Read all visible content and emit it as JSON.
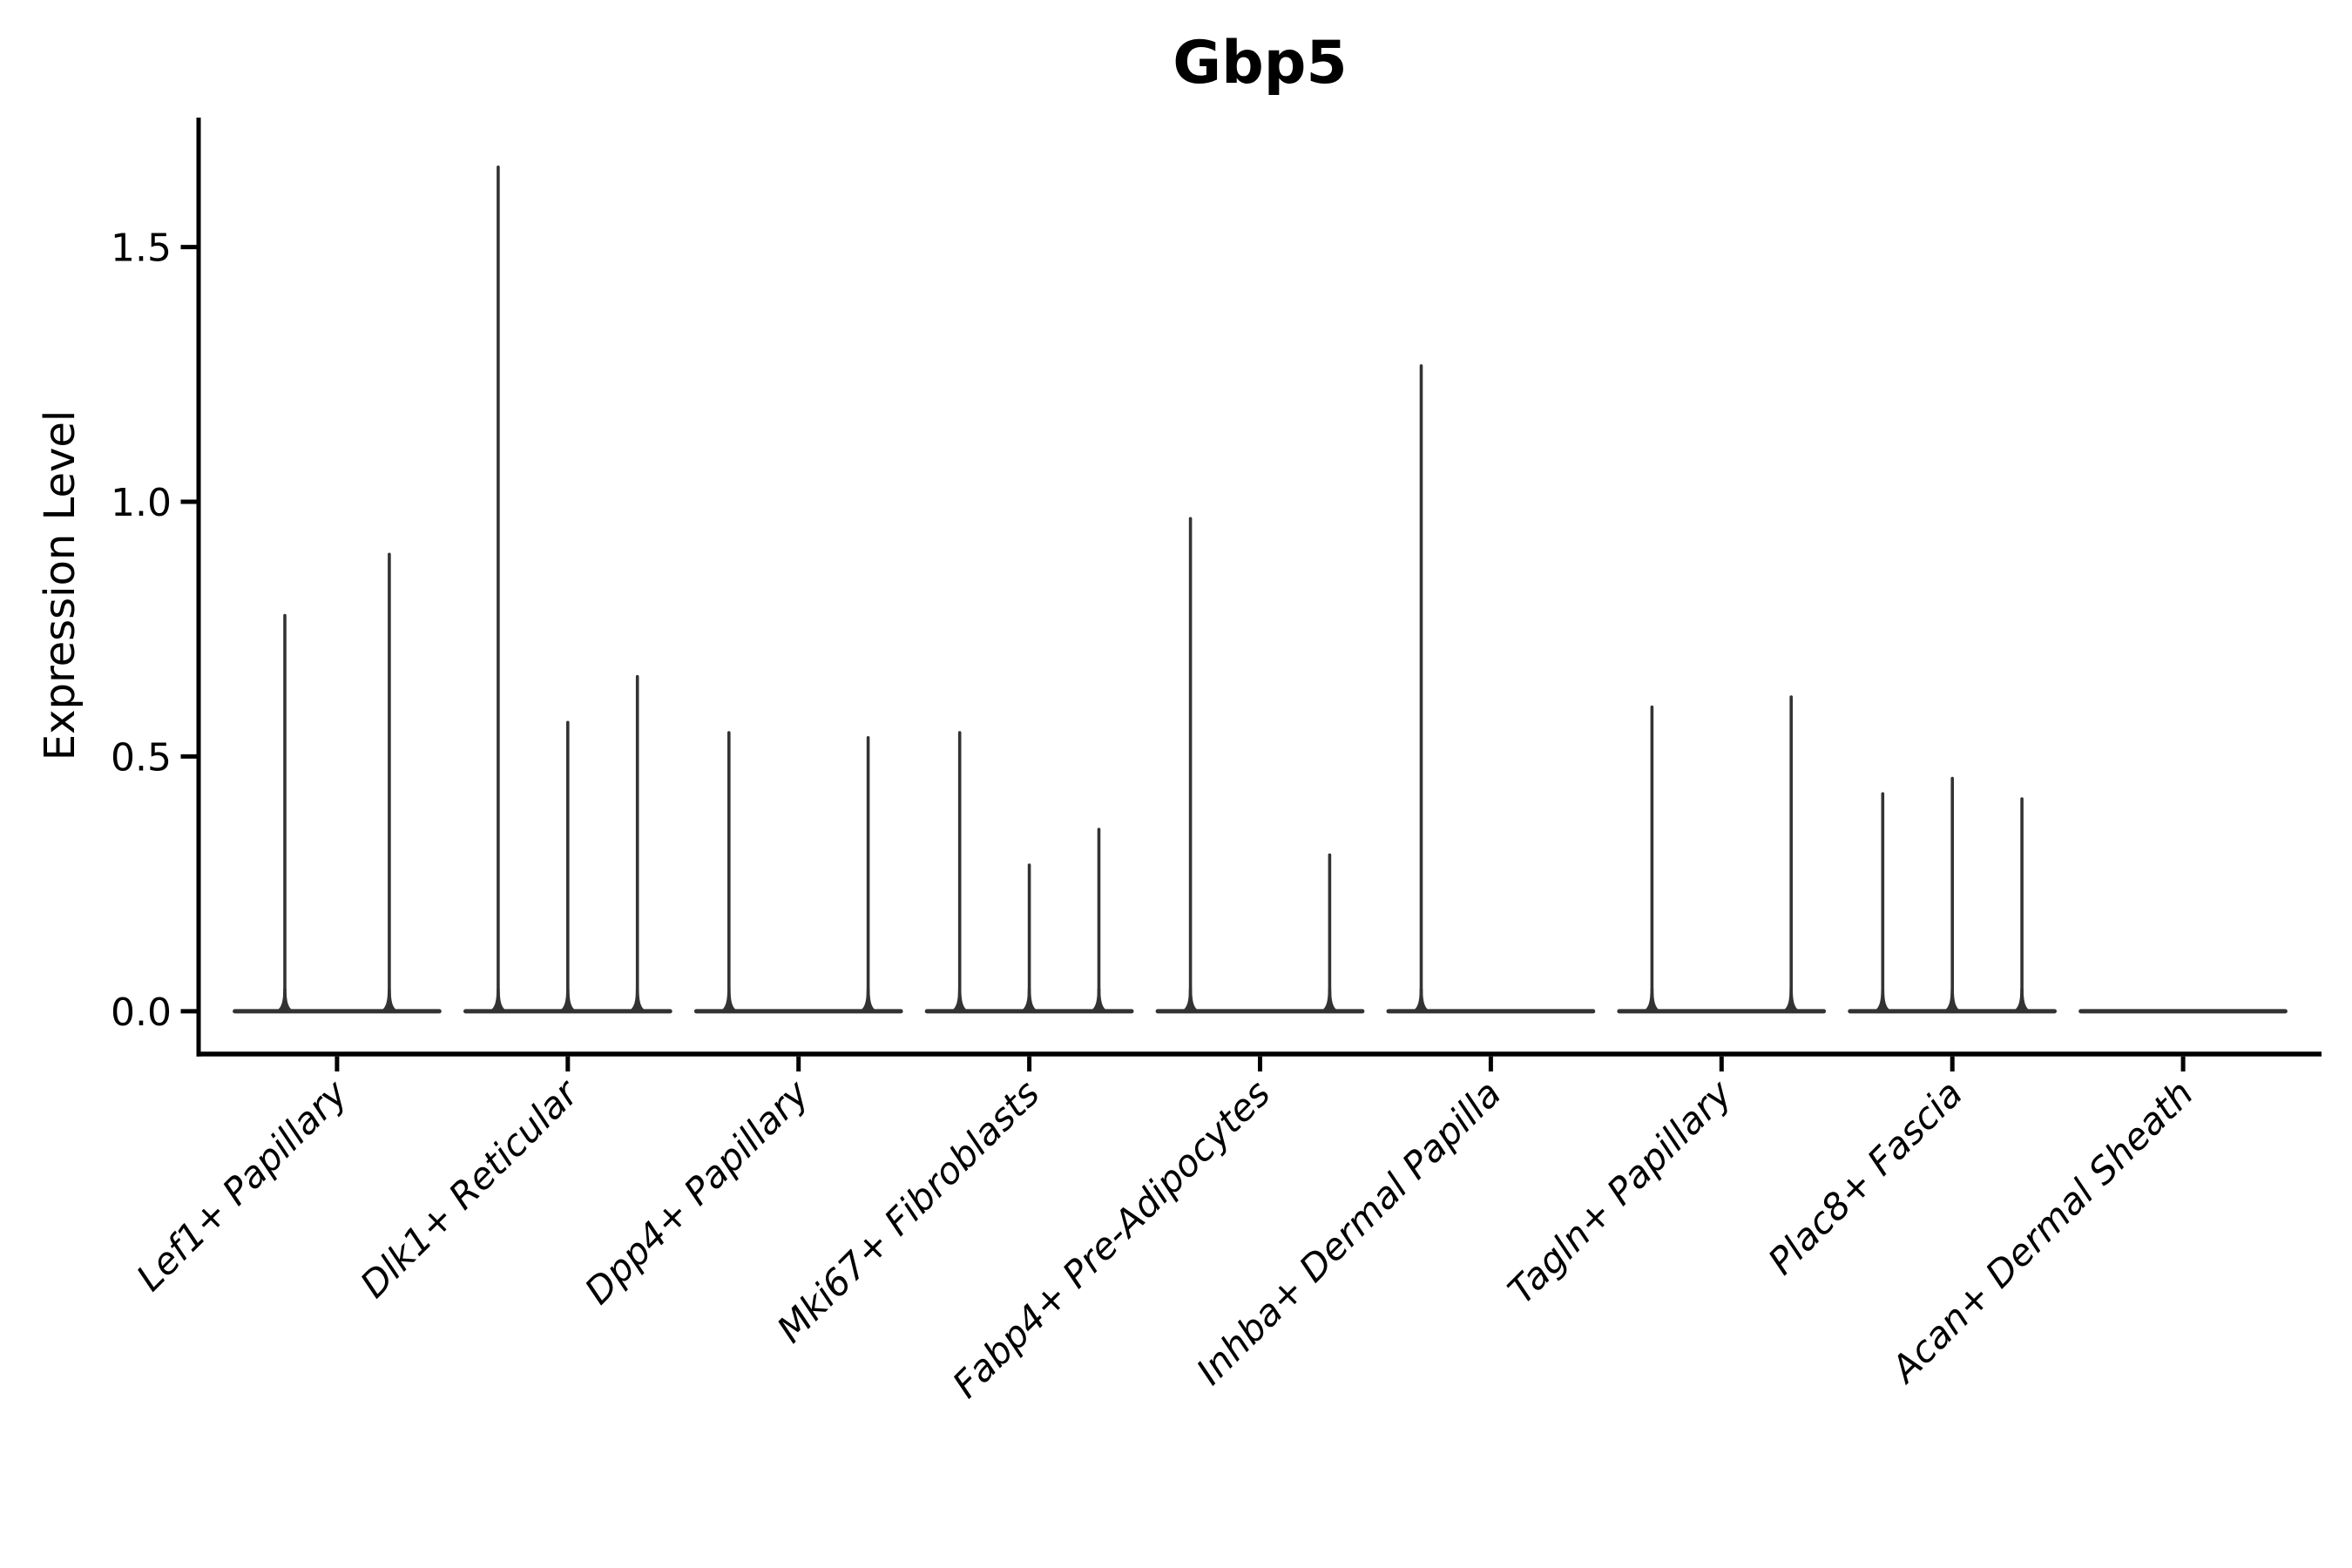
{
  "figure": {
    "background": "#ffffff"
  },
  "chart_data": {
    "type": "violin",
    "title": "Gbp5",
    "xlabel": "",
    "ylabel": "Expression Level",
    "categories": [
      "Lef1+ Papillary",
      "Dlk1+ Reticular",
      "Dpp4+ Papillary",
      "Mki67+ Fibroblasts",
      "Fabp4+ Pre-Adipocytes",
      "Inhba+ Dermal Papilla",
      "Tagln+ Papillary",
      "Plac8+ Fascia",
      "Acan+ Dermal Sheath"
    ],
    "series": [
      {
        "category": "Lef1+ Papillary",
        "violin_max_values": [
          0.78,
          0.9
        ]
      },
      {
        "category": "Dlk1+ Reticular",
        "violin_max_values": [
          1.66,
          0.57,
          0.66
        ]
      },
      {
        "category": "Dpp4+ Papillary",
        "violin_max_values": [
          0.55,
          0.0,
          0.54
        ]
      },
      {
        "category": "Mki67+ Fibroblasts",
        "violin_max_values": [
          0.55,
          0.29,
          0.36
        ]
      },
      {
        "category": "Fabp4+ Pre-Adipocytes",
        "violin_max_values": [
          0.97,
          0.0,
          0.31
        ]
      },
      {
        "category": "Inhba+ Dermal Papilla",
        "violin_max_values": [
          1.27,
          0.0,
          0.0
        ]
      },
      {
        "category": "Tagln+ Papillary",
        "violin_max_values": [
          0.6,
          0.0,
          0.62
        ]
      },
      {
        "category": "Plac8+ Fascia",
        "violin_max_values": [
          0.43,
          0.46,
          0.42
        ]
      },
      {
        "category": "Acan+ Dermal Sheath",
        "violin_max_values": [
          0.0,
          0.0,
          0.0
        ]
      }
    ],
    "violin_min_value": 0.0,
    "yticks": [
      0,
      0.5,
      1.0,
      1.5
    ],
    "ytick_labels": [
      "0.0",
      "0.5",
      "1.0",
      "1.5"
    ],
    "ylim": [
      -0.084,
      1.754
    ],
    "x_tick_rotation_deg": 45,
    "grid": false,
    "legend_position": "none",
    "violin_color": "#333333",
    "axis_color": "#000000",
    "text_color": "#000000"
  }
}
